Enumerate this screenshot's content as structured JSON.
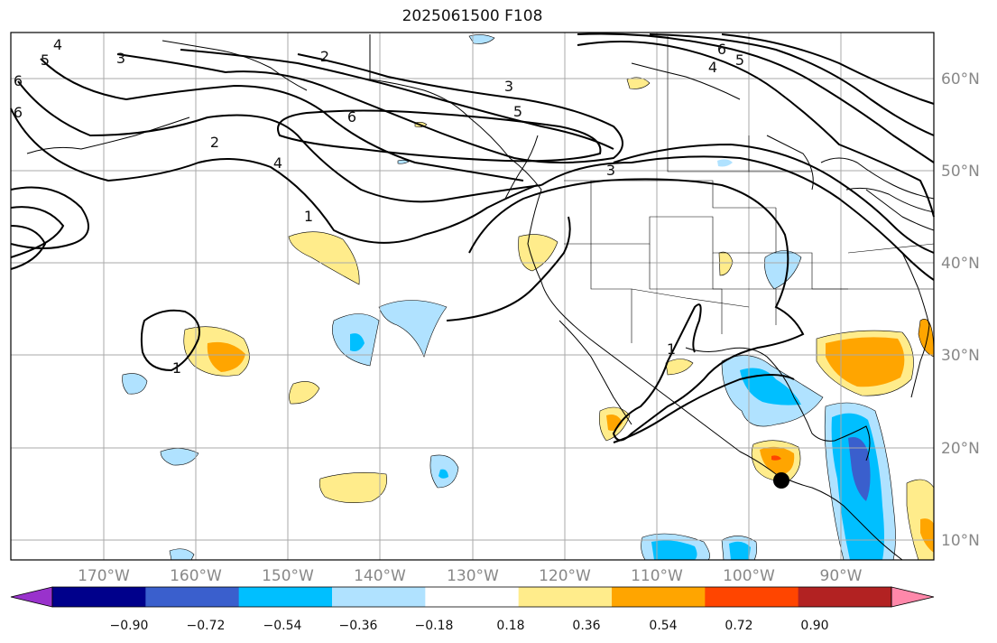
{
  "title": "2025061500 F108",
  "lon_labels": [
    "170°W",
    "160°W",
    "150°W",
    "140°W",
    "130°W",
    "120°W",
    "110°W",
    "100°W",
    "90°W"
  ],
  "lat_labels": [
    "60°N",
    "50°N",
    "40°N",
    "30°N",
    "20°N",
    "10°N"
  ],
  "colorbar": {
    "colors": [
      "#9932cc",
      "#00008b",
      "#3a5fcd",
      "#00bfff",
      "#b0e2ff",
      "#ffffff",
      "#ffec8b",
      "#ffa500",
      "#ff4500",
      "#b22222",
      "#ff88aa"
    ],
    "ticks": [
      "−0.90",
      "−0.72",
      "−0.54",
      "−0.36",
      "−0.18",
      "0.18",
      "0.36",
      "0.54",
      "0.72",
      "0.90"
    ]
  },
  "contour_labels": [
    "1",
    "2",
    "3",
    "4",
    "5",
    "6"
  ],
  "colors": {
    "land_line": "#000000",
    "grid": "#aaaaaa",
    "contour": "#000000"
  },
  "marker": "storm-center"
}
